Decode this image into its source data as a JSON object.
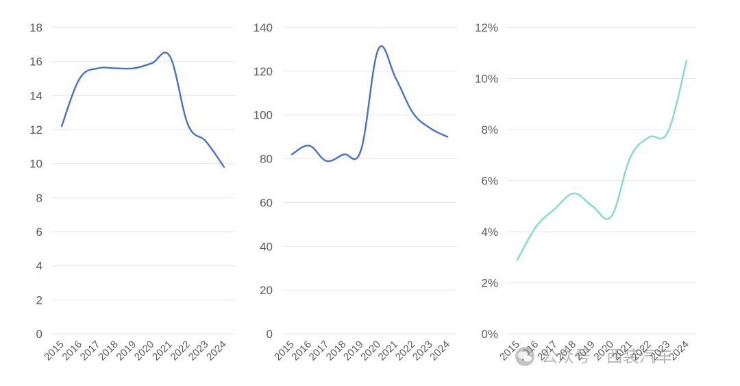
{
  "chart_data": [
    {
      "type": "line",
      "categories": [
        "2015",
        "2016",
        "2017",
        "2018",
        "2019",
        "2020",
        "2021",
        "2022",
        "2023",
        "2024"
      ],
      "series": [
        {
          "values": [
            12.2,
            15.0,
            15.6,
            15.6,
            15.6,
            15.9,
            16.3,
            12.3,
            11.3,
            9.8
          ],
          "color": "#4472c4"
        }
      ],
      "ylim": [
        0,
        18
      ],
      "yticks": [
        0,
        2,
        4,
        6,
        8,
        10,
        12,
        14,
        16,
        18
      ],
      "ytick_labels": [
        "0",
        "2",
        "4",
        "6",
        "8",
        "10",
        "12",
        "14",
        "16",
        "18"
      ],
      "grid": true
    },
    {
      "type": "line",
      "categories": [
        "2015",
        "2016",
        "2017",
        "2018",
        "2019",
        "2020",
        "2021",
        "2022",
        "2023",
        "2024"
      ],
      "series": [
        {
          "values": [
            82,
            86,
            79,
            82,
            84,
            130,
            117,
            101,
            94,
            90
          ],
          "color": "#4472c4"
        }
      ],
      "ylim": [
        0,
        140
      ],
      "yticks": [
        0,
        20,
        40,
        60,
        80,
        100,
        120,
        140
      ],
      "ytick_labels": [
        "0",
        "20",
        "40",
        "60",
        "80",
        "100",
        "120",
        "140"
      ],
      "grid": true
    },
    {
      "type": "line",
      "categories": [
        "2015",
        "2016",
        "2017",
        "2018",
        "2019",
        "2020",
        "2021",
        "2022",
        "2023",
        "2024"
      ],
      "series": [
        {
          "values": [
            2.9,
            4.2,
            4.9,
            5.5,
            5.0,
            4.6,
            6.9,
            7.7,
            7.9,
            10.7
          ],
          "color": "#7ee0bd"
        }
      ],
      "ylim": [
        0,
        12
      ],
      "yticks": [
        0,
        2,
        4,
        6,
        8,
        10,
        12
      ],
      "ytick_labels": [
        "0%",
        "2%",
        "4%",
        "6%",
        "8%",
        "10%",
        "12%"
      ],
      "grid": true
    }
  ],
  "watermark": {
    "text": "公众号 · 西装汽车",
    "icon": "wechat-logo-icon"
  }
}
